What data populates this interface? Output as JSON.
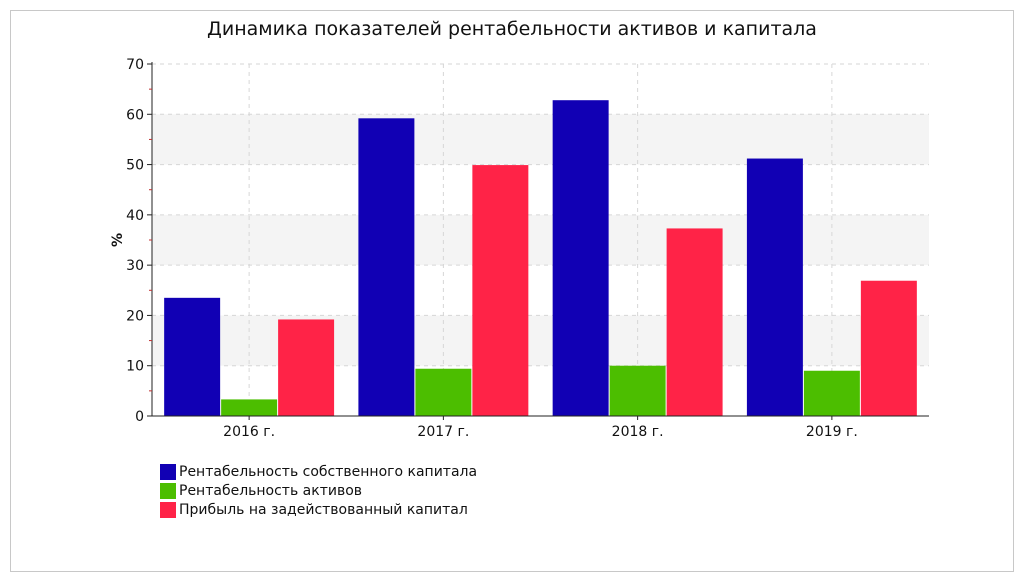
{
  "chart_data": {
    "type": "bar",
    "title": "Динамика показателей рентабельности активов и капитала",
    "ylabel": "%",
    "xlabel": "",
    "ylim": [
      0,
      70
    ],
    "yticks": [
      0,
      10,
      20,
      30,
      40,
      50,
      60,
      70
    ],
    "grid": true,
    "legend_position": "bottom-left",
    "categories": [
      "2016 г.",
      "2017 г.",
      "2018 г.",
      "2019 г."
    ],
    "series": [
      {
        "name": "Рентабельность собственного капитала",
        "color": "#1100b4",
        "values": [
          23.5,
          59.2,
          62.8,
          51.2
        ]
      },
      {
        "name": "Рентабельность активов",
        "color": "#4cbe00",
        "values": [
          3.3,
          9.4,
          10.0,
          9.0
        ]
      },
      {
        "name": "Прибыль на задействованный капитал",
        "color": "#ff2347",
        "values": [
          19.2,
          49.9,
          37.3,
          26.9
        ]
      }
    ]
  }
}
